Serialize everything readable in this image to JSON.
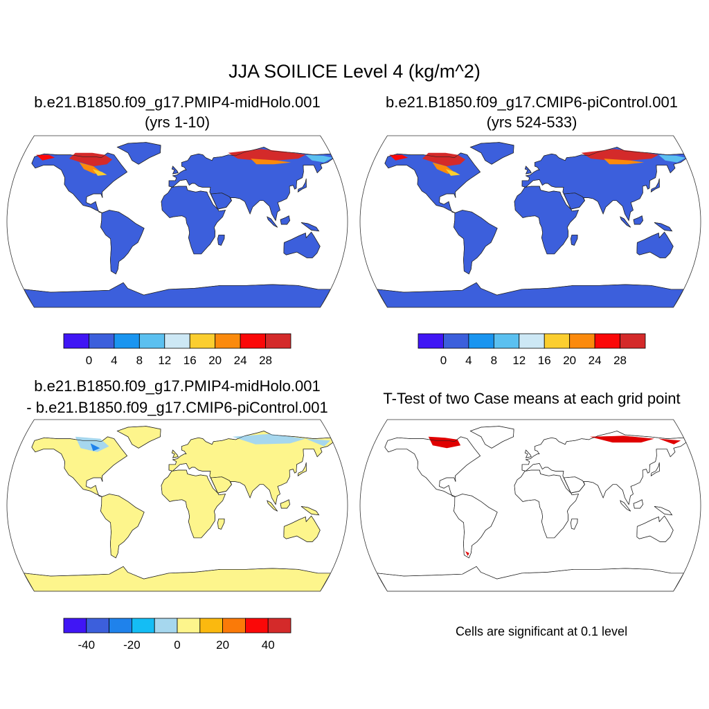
{
  "title": "JJA SOILICE Level 4 (kg/m^2)",
  "panels": [
    {
      "title": "b.e21.B1850.f09_g17.PMIP4-midHolo.001",
      "subtitle": "(yrs 1-10)"
    },
    {
      "title": "b.e21.B1850.f09_g17.CMIP6-piControl.001",
      "subtitle": "(yrs 524-533)"
    },
    {
      "title": "b.e21.B1850.f09_g17.PMIP4-midHolo.001",
      "subtitle": "- b.e21.B1850.f09_g17.CMIP6-piControl.001"
    },
    {
      "title": "T-Test of two Case means at each grid point",
      "note": "Cells are significant at 0.1 level"
    }
  ],
  "colorbars": {
    "abs": {
      "colors": [
        "#4016f5",
        "#3c5fdc",
        "#1a95f0",
        "#5bc0f0",
        "#cde8f5",
        "#fbce2f",
        "#fb8a0c",
        "#fb0808",
        "#d42a2a"
      ],
      "labels": [
        "0",
        "4",
        "8",
        "12",
        "16",
        "20",
        "24",
        "28"
      ]
    },
    "diff": {
      "colors": [
        "#4016f5",
        "#3c5fdc",
        "#1f82eb",
        "#14bdf5",
        "#a6d7ee",
        "#fdf58c",
        "#fbb90f",
        "#fb7a08",
        "#fb0808",
        "#d42a2a"
      ],
      "labels": [
        "-40",
        "-20",
        "0",
        "20",
        "40"
      ]
    }
  },
  "map_colors": {
    "land_abs": "#3c5fdc",
    "land_diff": "#fdf58c",
    "ice_high": "#d42a2a",
    "ice_mid": "#fb0808",
    "ice_low": "#fb8a0c",
    "ice_yellow": "#fbce2f",
    "ice_light": "#5bc0f0",
    "diff_neg": "#a6d7ee",
    "diff_neg2": "#1f82eb",
    "sig": "#e00000"
  }
}
